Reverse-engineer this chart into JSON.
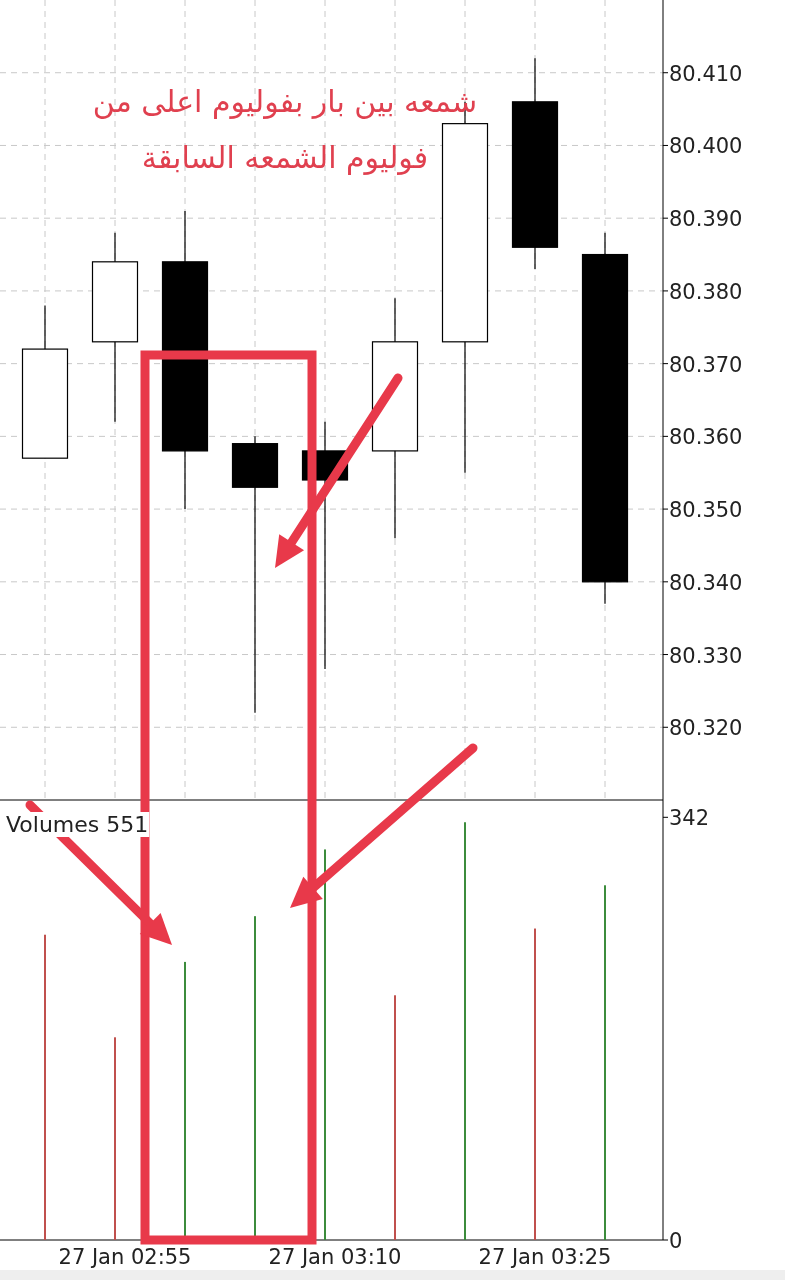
{
  "chart_data": [
    {
      "type": "candlestick",
      "categories": [
        null,
        null,
        null,
        null,
        null,
        null,
        null,
        null,
        null
      ],
      "ohlc": [
        [
          80.357,
          80.378,
          80.357,
          80.372
        ],
        [
          80.373,
          80.388,
          80.362,
          80.384
        ],
        [
          80.384,
          80.391,
          80.35,
          80.358
        ],
        [
          80.359,
          80.36,
          80.322,
          80.353
        ],
        [
          80.358,
          80.362,
          80.328,
          80.354
        ],
        [
          80.358,
          80.379,
          80.346,
          80.373
        ],
        [
          80.373,
          80.406,
          80.355,
          80.403
        ],
        [
          80.406,
          80.412,
          80.383,
          80.386
        ],
        [
          80.385,
          80.388,
          80.337,
          80.34
        ]
      ],
      "ylim": [
        80.31,
        80.42
      ],
      "yticks": [
        {
          "value": 80.32,
          "label": "80.320"
        },
        {
          "value": 80.33,
          "label": "80.330"
        },
        {
          "value": 80.34,
          "label": "80.340"
        },
        {
          "value": 80.35,
          "label": "80.350"
        },
        {
          "value": 80.36,
          "label": "80.360"
        },
        {
          "value": 80.37,
          "label": "80.370"
        },
        {
          "value": 80.38,
          "label": "80.380"
        },
        {
          "value": 80.39,
          "label": "80.390"
        },
        {
          "value": 80.4,
          "label": "80.400"
        },
        {
          "value": 80.41,
          "label": "80.410"
        }
      ],
      "tick_labels": "y",
      "grid": true,
      "annotations": [
        "شمعه بين بار بفوليوم اعلى من فوليوم الشمعه السابقة"
      ]
    },
    {
      "type": "bar",
      "title": "Volumes 551",
      "categories": [
        null,
        "27 Jan 02:55",
        null,
        null,
        "27 Jan 03:10",
        null,
        null,
        "27 Jan 03:25",
        null
      ],
      "values": [
        247,
        164,
        225,
        262,
        316,
        198,
        338,
        252,
        287
      ],
      "colors": [
        "#c0504d",
        "#c0504d",
        "#3c8c3c",
        "#3c8c3c",
        "#3c8c3c",
        "#c0504d",
        "#3c8c3c",
        "#c0504d",
        "#3c8c3c"
      ],
      "ylim": [
        0,
        356
      ],
      "yticks": [
        0,
        342
      ]
    }
  ]
}
